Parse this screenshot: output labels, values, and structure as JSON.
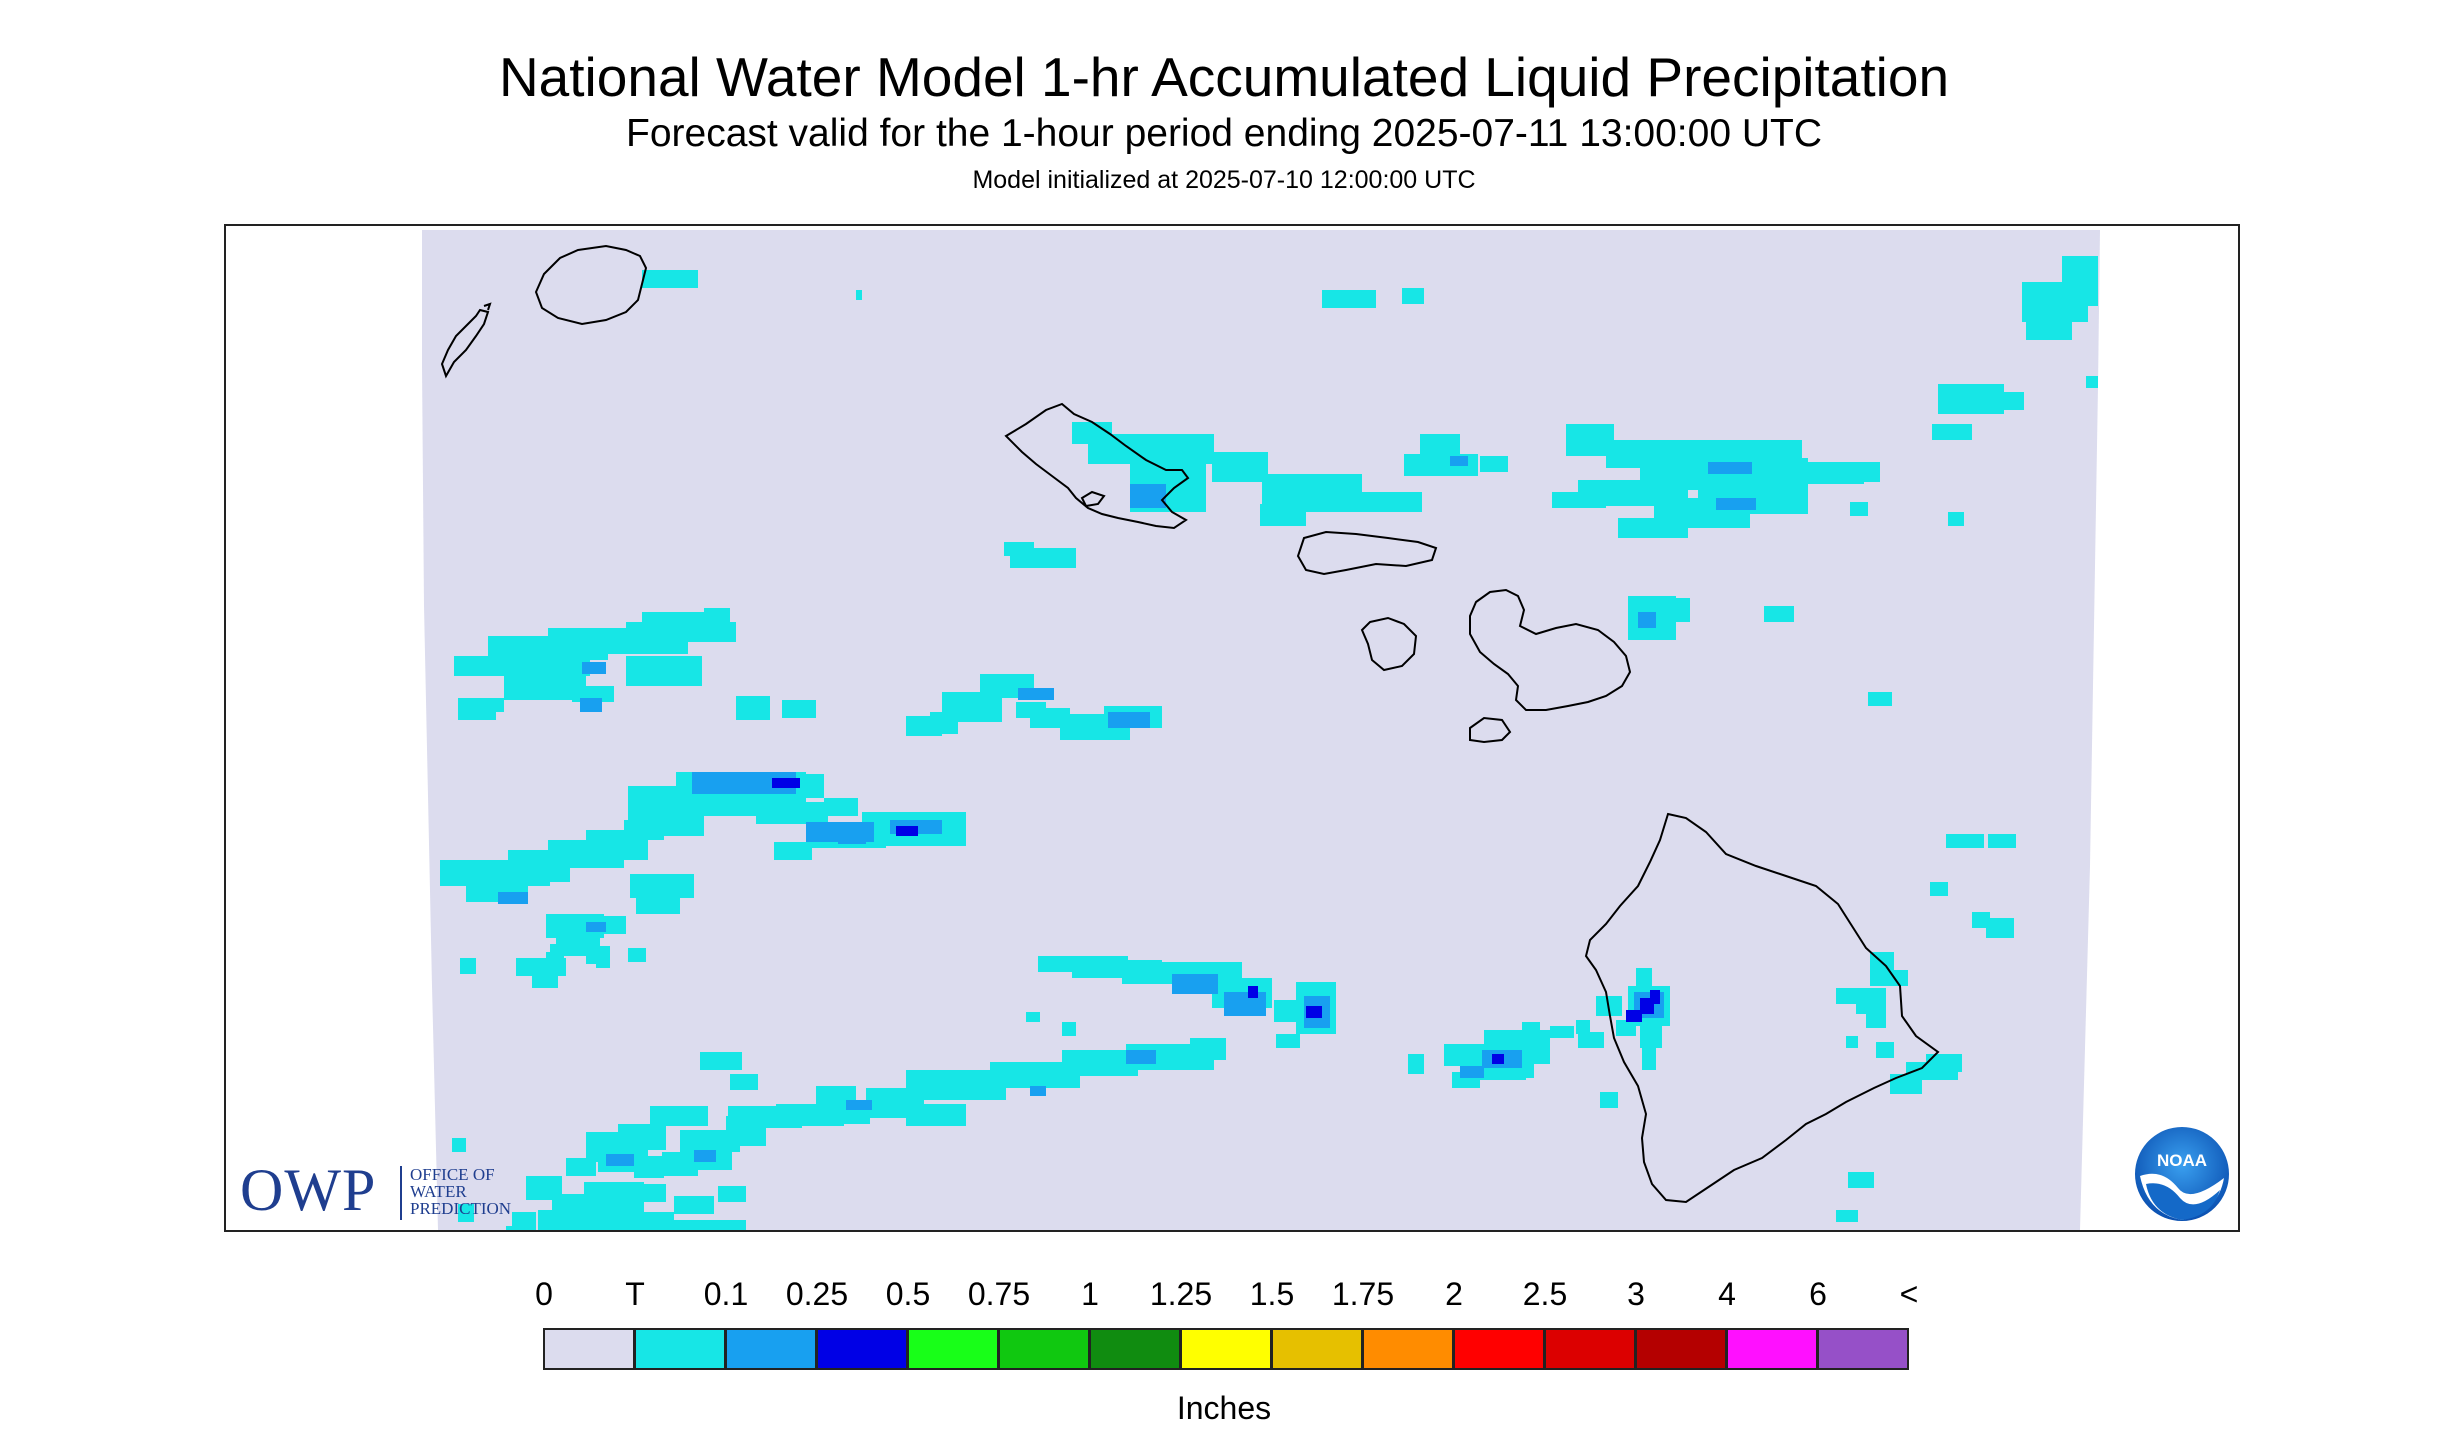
{
  "header": {
    "title": "National Water Model 1-hr Accumulated Liquid Precipitation",
    "subtitle": "Forecast valid for the 1-hour period ending 2025-07-11 13:00:00 UTC",
    "init": "Model initialized at 2025-07-10 12:00:00 UTC"
  },
  "logos": {
    "owp_mark": "OWP",
    "owp_line1": "OFFICE OF",
    "owp_line2": "WATER",
    "owp_line3": "PREDICTION",
    "noaa_text": "NOAA"
  },
  "legend": {
    "labels": [
      "0",
      "T",
      "0.1",
      "0.25",
      "0.5",
      "0.75",
      "1",
      "1.25",
      "1.5",
      "1.75",
      "2",
      "2.5",
      "3",
      "4",
      "6",
      "<"
    ],
    "colors": [
      "#dcdcee",
      "#17e6e6",
      "#18a0f0",
      "#0000e6",
      "#18ff18",
      "#10c810",
      "#108c10",
      "#ffff00",
      "#e6c000",
      "#ff8c00",
      "#ff0000",
      "#dc0000",
      "#b40000",
      "#ff10ff",
      "#9650c8"
    ],
    "units": "Inches"
  },
  "colors": {
    "domain_fill": "#dcdcee",
    "trace": "#17e6e6",
    "light": "#18a0f0",
    "moderate": "#0000e6",
    "coastline": "#000000",
    "owp_blue": "#1f3e8f",
    "noaa_blue": "#1469c8"
  }
}
